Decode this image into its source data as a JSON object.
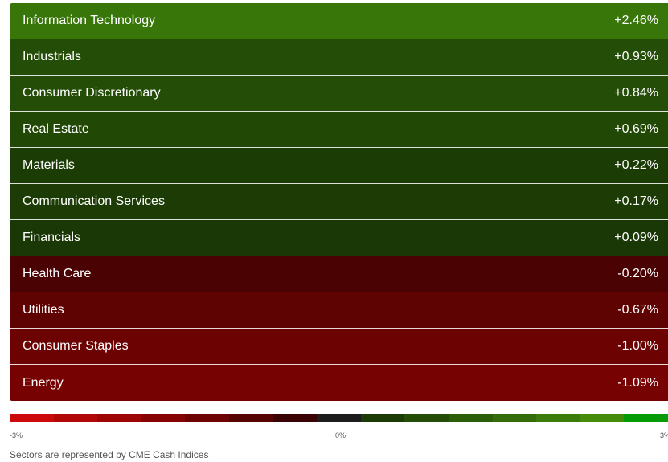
{
  "sectors": [
    {
      "name": "Information Technology",
      "value": "+2.46%",
      "color": "#38760a"
    },
    {
      "name": "Industrials",
      "value": "+0.93%",
      "color": "#244e07"
    },
    {
      "name": "Consumer Discretionary",
      "value": "+0.84%",
      "color": "#244d07"
    },
    {
      "name": "Real Estate",
      "value": "+0.69%",
      "color": "#224806"
    },
    {
      "name": "Materials",
      "value": "+0.22%",
      "color": "#1c3c05"
    },
    {
      "name": "Communication Services",
      "value": "+0.17%",
      "color": "#1c3b05"
    },
    {
      "name": "Financials",
      "value": "+0.09%",
      "color": "#1a3805"
    },
    {
      "name": "Health Care",
      "value": "-0.20%",
      "color": "#4a0202"
    },
    {
      "name": "Utilities",
      "value": "-0.67%",
      "color": "#5f0202"
    },
    {
      "name": "Consumer Staples",
      "value": "-1.00%",
      "color": "#6c0202"
    },
    {
      "name": "Energy",
      "value": "-1.09%",
      "color": "#770202"
    }
  ],
  "legend": {
    "min_label": "-3%",
    "mid_label": "0%",
    "max_label": "3%",
    "colors": [
      "#cc0a0a",
      "#b30808",
      "#9e0606",
      "#870404",
      "#6e0303",
      "#550202",
      "#3a0202",
      "#1c1c1c",
      "#1c3c05",
      "#244e07",
      "#2c5e08",
      "#336c09",
      "#3c7c0a",
      "#468c0b",
      "#079b07"
    ]
  },
  "footnote": "Sectors are represented by CME Cash Indices"
}
